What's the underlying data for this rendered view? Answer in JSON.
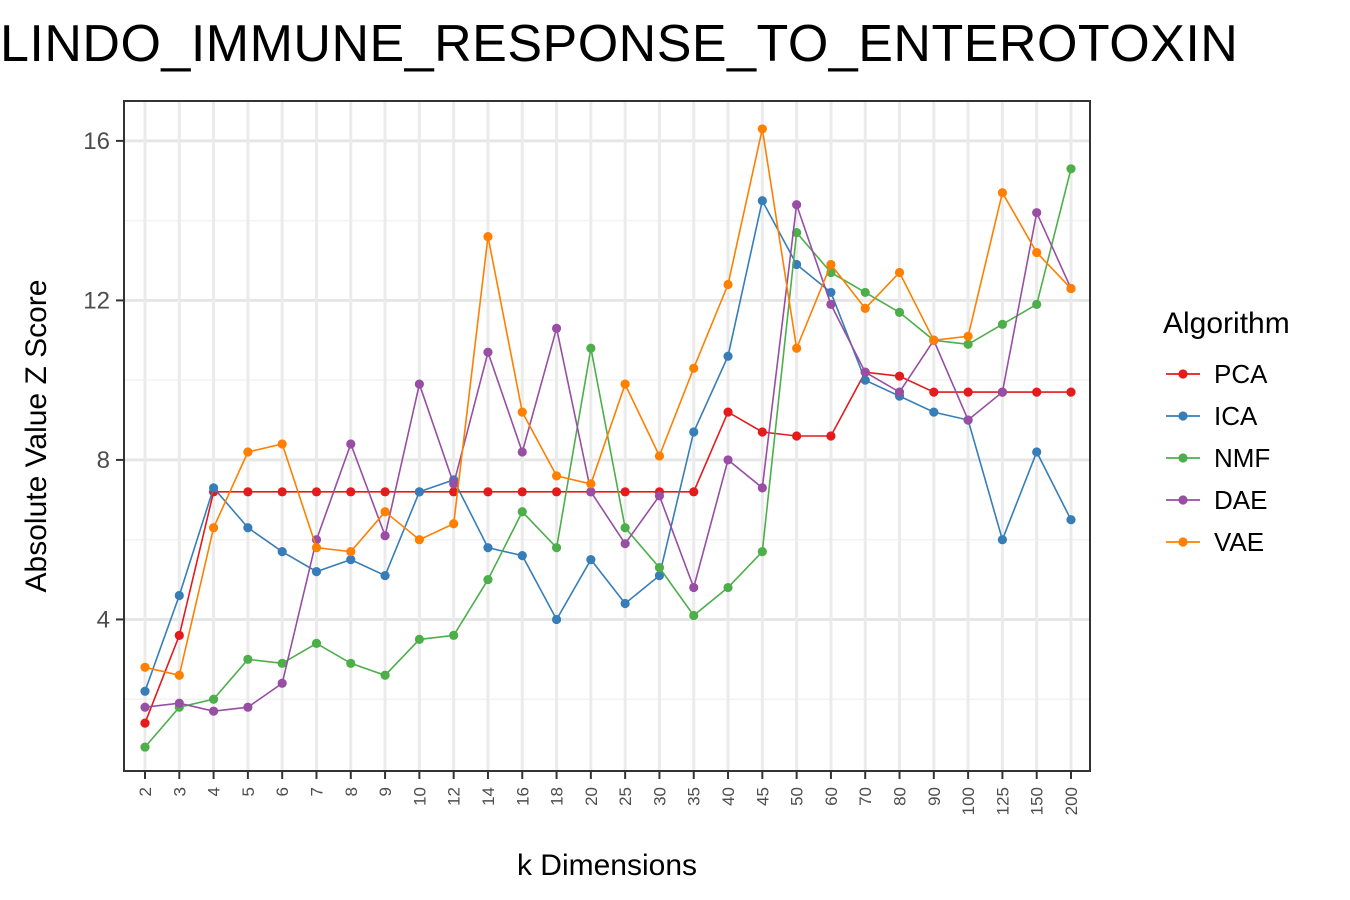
{
  "chart_data": {
    "type": "line",
    "title": "LINDO_IMMUNE_RESPONSE_TO_ENTEROTOXIN",
    "xlabel": "k Dimensions",
    "ylabel": "Absolute Value Z Score",
    "categories": [
      "2",
      "3",
      "4",
      "5",
      "6",
      "7",
      "8",
      "9",
      "10",
      "12",
      "14",
      "16",
      "18",
      "20",
      "25",
      "30",
      "35",
      "40",
      "45",
      "50",
      "60",
      "70",
      "80",
      "90",
      "100",
      "125",
      "150",
      "200"
    ],
    "ylim": [
      0.2,
      17.0
    ],
    "yticks": [
      4,
      8,
      12,
      16
    ],
    "ytick_labels": [
      "4",
      "8",
      "12",
      "16"
    ],
    "grid": true,
    "legend_title": "Algorithm",
    "legend_position": "right",
    "series": [
      {
        "name": "PCA",
        "color": "#E41A1C",
        "values": [
          1.4,
          3.6,
          7.2,
          7.2,
          7.2,
          7.2,
          7.2,
          7.2,
          7.2,
          7.2,
          7.2,
          7.2,
          7.2,
          7.2,
          7.2,
          7.2,
          7.2,
          9.2,
          8.7,
          8.6,
          8.6,
          10.2,
          10.1,
          9.7,
          9.7,
          9.7,
          9.7,
          9.7
        ]
      },
      {
        "name": "ICA",
        "color": "#377EB8",
        "values": [
          2.2,
          4.6,
          7.3,
          6.3,
          5.7,
          5.2,
          5.5,
          5.1,
          7.2,
          7.5,
          5.8,
          5.6,
          4.0,
          5.5,
          4.4,
          5.1,
          8.7,
          10.6,
          14.5,
          12.9,
          12.2,
          10.0,
          9.6,
          9.2,
          9.0,
          6.0,
          8.2,
          6.5
        ]
      },
      {
        "name": "NMF",
        "color": "#4DAF4A",
        "values": [
          0.8,
          1.8,
          2.0,
          3.0,
          2.9,
          3.4,
          2.9,
          2.6,
          3.5,
          3.6,
          5.0,
          6.7,
          5.8,
          10.8,
          6.3,
          5.3,
          4.1,
          4.8,
          5.7,
          13.7,
          12.7,
          12.2,
          11.7,
          11.0,
          10.9,
          11.4,
          11.9,
          15.3
        ]
      },
      {
        "name": "DAE",
        "color": "#984EA3",
        "values": [
          1.8,
          1.9,
          1.7,
          1.8,
          2.4,
          6.0,
          8.4,
          6.1,
          9.9,
          7.4,
          10.7,
          8.2,
          11.3,
          7.2,
          5.9,
          7.1,
          4.8,
          8.0,
          7.3,
          14.4,
          11.9,
          10.2,
          9.7,
          11.0,
          9.0,
          9.7,
          14.2,
          12.3
        ]
      },
      {
        "name": "VAE",
        "color": "#FF7F00",
        "values": [
          2.8,
          2.6,
          6.3,
          8.2,
          8.4,
          5.8,
          5.7,
          6.7,
          6.0,
          6.4,
          13.6,
          9.2,
          7.6,
          7.4,
          9.9,
          8.1,
          10.3,
          12.4,
          16.3,
          10.8,
          12.9,
          11.8,
          12.7,
          11.0,
          11.1,
          14.7,
          13.2,
          12.3
        ]
      }
    ]
  }
}
